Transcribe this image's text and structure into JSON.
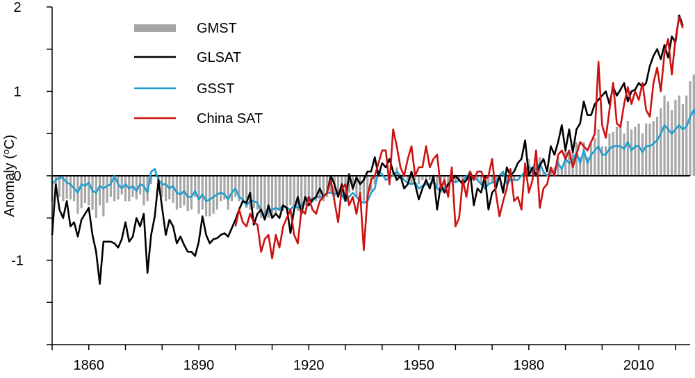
{
  "chart_data": {
    "type": "line",
    "title": "",
    "xlabel": "",
    "ylabel": "Anomaly (°C)",
    "ylabel_parts": {
      "pre": "Anomaly (",
      "sup": "o",
      "post": "C)"
    },
    "xlim": [
      1850,
      2024
    ],
    "ylim": [
      -2,
      2
    ],
    "x_ticks": [
      1860,
      1890,
      1920,
      1950,
      1980,
      2010
    ],
    "x_minor_step": 10,
    "y_ticks": [
      -1,
      0,
      1,
      2
    ],
    "y_minor_step": 0.5,
    "legend_position": "top-left",
    "legend": [
      "GMST",
      "GLSAT",
      "GSST",
      "China SAT"
    ],
    "colors": {
      "GMST": "#a6a6a6",
      "GLSAT": "#000000",
      "GSST": "#1f9ed1",
      "China SAT": "#cc1111"
    },
    "series": [
      {
        "name": "GMST",
        "type": "bar",
        "start_year": 1850,
        "color": "#a6a6a6",
        "values": [
          -0.3,
          -0.2,
          -0.25,
          -0.3,
          -0.27,
          -0.28,
          -0.3,
          -0.45,
          -0.38,
          -0.32,
          -0.35,
          -0.4,
          -0.5,
          -0.35,
          -0.48,
          -0.32,
          -0.25,
          -0.3,
          -0.28,
          -0.22,
          -0.3,
          -0.3,
          -0.25,
          -0.28,
          -0.22,
          -0.35,
          -0.3,
          -0.1,
          0.02,
          -0.18,
          -0.25,
          -0.3,
          -0.28,
          -0.32,
          -0.4,
          -0.38,
          -0.35,
          -0.42,
          -0.4,
          -0.25,
          -0.45,
          -0.4,
          -0.48,
          -0.48,
          -0.45,
          -0.4,
          -0.3,
          -0.28,
          -0.4,
          -0.3,
          -0.25,
          -0.3,
          -0.32,
          -0.38,
          -0.4,
          -0.38,
          -0.4,
          -0.5,
          -0.52,
          -0.5,
          -0.48,
          -0.45,
          -0.42,
          -0.42,
          -0.4,
          -0.35,
          -0.35,
          -0.42,
          -0.38,
          -0.35,
          -0.3,
          -0.32,
          -0.3,
          -0.28,
          -0.3,
          -0.25,
          -0.2,
          -0.25,
          -0.2,
          -0.18,
          -0.3,
          -0.2,
          -0.18,
          -0.25,
          -0.3,
          -0.3,
          -0.25,
          -0.18,
          -0.1,
          0.02,
          0.0,
          0.0,
          0.0,
          0.05,
          0.1,
          0.0,
          -0.02,
          -0.05,
          -0.1,
          -0.05,
          -0.1,
          -0.05,
          -0.1,
          -0.05,
          -0.1,
          -0.15,
          -0.2,
          -0.2,
          -0.1,
          -0.05,
          -0.08,
          -0.05,
          -0.08,
          -0.02,
          -0.05,
          -0.02,
          -0.05,
          -0.1,
          -0.15,
          -0.1,
          -0.08,
          -0.1,
          -0.02,
          0.05,
          -0.1,
          -0.05,
          -0.05,
          0.0,
          0.0,
          0.1,
          0.2,
          0.1,
          0.15,
          0.22,
          0.05,
          0.0,
          0.1,
          0.1,
          0.22,
          0.08,
          0.3,
          0.25,
          0.28,
          0.4,
          0.22,
          0.4,
          0.22,
          0.38,
          0.45,
          0.55,
          0.35,
          0.35,
          0.5,
          0.52,
          0.58,
          0.6,
          0.5,
          0.65,
          0.55,
          0.58,
          0.62,
          0.5,
          0.62,
          0.62,
          0.65,
          0.7,
          0.8,
          0.95,
          0.88,
          0.78,
          0.9,
          0.95,
          0.85,
          0.95,
          1.12,
          1.2,
          1.08
        ]
      },
      {
        "name": "GLSAT",
        "type": "line",
        "start_year": 1850,
        "color": "#000000",
        "values": [
          -0.7,
          -0.1,
          -0.4,
          -0.5,
          -0.3,
          -0.6,
          -0.55,
          -0.72,
          -0.52,
          -0.45,
          -0.38,
          -0.7,
          -0.9,
          -1.28,
          -0.78,
          -0.78,
          -0.78,
          -0.8,
          -0.85,
          -0.75,
          -0.55,
          -0.78,
          -0.72,
          -0.5,
          -0.6,
          -0.45,
          -1.15,
          -0.7,
          -0.48,
          -0.05,
          -0.38,
          -0.7,
          -0.52,
          -0.6,
          -0.8,
          -0.72,
          -0.82,
          -0.9,
          -0.9,
          -0.95,
          -0.78,
          -0.48,
          -0.7,
          -0.8,
          -0.75,
          -0.74,
          -0.7,
          -0.68,
          -0.72,
          -0.62,
          -0.52,
          -0.4,
          -0.3,
          -0.32,
          -0.2,
          -0.58,
          -0.45,
          -0.4,
          -0.52,
          -0.35,
          -0.5,
          -0.45,
          -0.5,
          -0.35,
          -0.38,
          -0.68,
          -0.4,
          -0.25,
          -0.45,
          -0.25,
          -0.35,
          -0.28,
          -0.25,
          -0.15,
          -0.25,
          -0.2,
          0.0,
          -0.1,
          -0.25,
          -0.1,
          -0.3,
          0.02,
          -0.15,
          -0.02,
          -0.1,
          -0.05,
          0.05,
          0.05,
          0.22,
          0.0,
          0.15,
          0.1,
          0.2,
          0.05,
          -0.05,
          0.0,
          -0.15,
          -0.1,
          0.05,
          -0.1,
          -0.28,
          -0.15,
          -0.05,
          -0.15,
          0.0,
          -0.4,
          -0.1,
          -0.2,
          -0.1,
          -0.05,
          0.0,
          -0.05,
          -0.1,
          -0.05,
          0.05,
          -0.35,
          -0.15,
          -0.2,
          0.0,
          -0.4,
          -0.2,
          -0.15,
          0.0,
          -0.2,
          0.1,
          0.0,
          0.05,
          0.15,
          0.2,
          0.42,
          0.0,
          0.1,
          0.0,
          0.12,
          0.2,
          0.05,
          0.35,
          0.25,
          0.4,
          0.6,
          0.3,
          0.55,
          0.28,
          0.55,
          0.62,
          0.88,
          0.72,
          0.72,
          0.85,
          0.9,
          0.95,
          1.0,
          0.85,
          1.05,
          0.95,
          1.02,
          1.1,
          0.88,
          1.0,
          1.02,
          1.1,
          1.05,
          1.1,
          1.3,
          1.42,
          1.5,
          1.38,
          1.55,
          1.4,
          1.65,
          1.58,
          1.9,
          1.78
        ]
      },
      {
        "name": "GSST",
        "type": "line",
        "start_year": 1850,
        "color": "#1f9ed1",
        "values": [
          -0.1,
          -0.05,
          -0.02,
          -0.03,
          -0.08,
          -0.1,
          -0.15,
          -0.2,
          -0.1,
          -0.12,
          -0.08,
          -0.18,
          -0.2,
          -0.12,
          -0.15,
          -0.12,
          -0.1,
          0.0,
          -0.1,
          -0.15,
          -0.1,
          -0.15,
          -0.12,
          -0.18,
          -0.1,
          -0.12,
          -0.2,
          0.05,
          0.08,
          -0.05,
          -0.1,
          -0.1,
          -0.15,
          -0.12,
          -0.2,
          -0.22,
          -0.18,
          -0.25,
          -0.25,
          -0.18,
          -0.28,
          -0.22,
          -0.3,
          -0.28,
          -0.25,
          -0.22,
          -0.2,
          -0.22,
          -0.28,
          -0.2,
          -0.15,
          -0.25,
          -0.28,
          -0.35,
          -0.3,
          -0.3,
          -0.32,
          -0.42,
          -0.48,
          -0.42,
          -0.4,
          -0.38,
          -0.4,
          -0.35,
          -0.38,
          -0.4,
          -0.35,
          -0.38,
          -0.35,
          -0.3,
          -0.25,
          -0.3,
          -0.25,
          -0.25,
          -0.25,
          -0.2,
          -0.2,
          -0.22,
          -0.2,
          -0.22,
          -0.3,
          -0.25,
          -0.2,
          -0.25,
          -0.3,
          -0.32,
          -0.3,
          -0.2,
          -0.15,
          0.05,
          0.02,
          -0.05,
          -0.02,
          0.0,
          0.05,
          0.0,
          -0.05,
          -0.08,
          -0.1,
          -0.08,
          -0.15,
          -0.12,
          -0.1,
          -0.1,
          -0.05,
          -0.15,
          -0.18,
          -0.15,
          -0.1,
          -0.05,
          -0.08,
          -0.05,
          -0.08,
          0.0,
          -0.05,
          -0.02,
          -0.05,
          -0.1,
          -0.15,
          -0.1,
          -0.08,
          -0.08,
          0.0,
          0.05,
          -0.1,
          -0.05,
          -0.05,
          -0.05,
          0.0,
          0.05,
          0.12,
          0.05,
          0.08,
          0.15,
          0.05,
          0.0,
          0.05,
          0.05,
          0.15,
          0.08,
          0.2,
          0.15,
          0.18,
          0.28,
          0.15,
          0.3,
          0.15,
          0.25,
          0.3,
          0.35,
          0.25,
          0.25,
          0.32,
          0.35,
          0.35,
          0.35,
          0.32,
          0.4,
          0.3,
          0.35,
          0.35,
          0.28,
          0.35,
          0.35,
          0.38,
          0.42,
          0.5,
          0.6,
          0.55,
          0.5,
          0.55,
          0.6,
          0.55,
          0.58,
          0.7,
          0.78,
          0.68
        ]
      },
      {
        "name": "China SAT",
        "type": "line",
        "start_year": 1900,
        "color": "#cc1111",
        "values": [
          -0.6,
          -0.4,
          -0.55,
          -0.6,
          -0.45,
          -0.55,
          -0.58,
          -0.9,
          -0.75,
          -0.7,
          -0.98,
          -0.7,
          -0.85,
          -0.6,
          -0.5,
          -0.4,
          -0.7,
          -0.8,
          -0.4,
          -0.45,
          -0.25,
          -0.4,
          -0.45,
          -0.3,
          -0.25,
          -0.2,
          -0.05,
          -0.3,
          -0.55,
          -0.15,
          -0.1,
          -0.35,
          -0.25,
          -0.45,
          -0.2,
          -0.88,
          -0.25,
          -0.05,
          0.0,
          0.15,
          0.3,
          0.3,
          -0.1,
          0.55,
          0.35,
          0.1,
          0.0,
          0.2,
          0.35,
          0.0,
          0.1,
          0.1,
          0.35,
          0.1,
          0.2,
          0.25,
          -0.15,
          -0.05,
          -0.25,
          0.1,
          -0.6,
          -0.5,
          -0.05,
          -0.25,
          0.05,
          -0.05,
          0.05,
          0.05,
          -0.05,
          0.0,
          0.2,
          -0.2,
          -0.48,
          -0.3,
          -0.15,
          0.08,
          -0.3,
          -0.25,
          -0.4,
          0.15,
          -0.2,
          -0.05,
          0.3,
          -0.38,
          -0.15,
          -0.1,
          0.1,
          0.0,
          0.25,
          0.3,
          0.2,
          0.3,
          0.1,
          0.25,
          0.4,
          0.35,
          0.3,
          0.4,
          0.5,
          1.35,
          0.6,
          0.45,
          0.78,
          1.1,
          0.62,
          0.58,
          0.85,
          1.05,
          0.85,
          1.0,
          0.9,
          1.1,
          0.78,
          0.7,
          1.1,
          1.28,
          1.0,
          1.45,
          1.62,
          1.2,
          1.62,
          1.88,
          1.75
        ]
      }
    ]
  }
}
